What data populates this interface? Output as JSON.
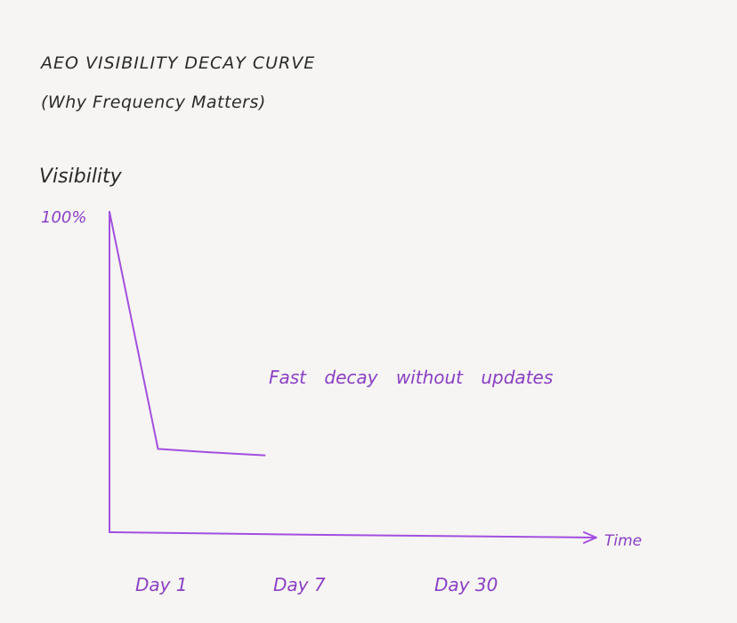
{
  "chart_data": {
    "type": "line",
    "title": "AEO VISIBILITY DECAY CURVE",
    "subtitle": "(Why Frequency Matters)",
    "ylabel": "Visibility",
    "xlabel": "Time",
    "y_tick_label": "100%",
    "x_tick_labels": [
      "Day 1",
      "Day 7",
      "Day 30"
    ],
    "annotation": "Fast decay without updates",
    "series": [
      {
        "x": [
          0,
          1,
          2,
          3.2
        ],
        "y": [
          100,
          26,
          25,
          24
        ]
      }
    ],
    "xlim": [
      0,
      10
    ],
    "ylim": [
      0,
      100
    ],
    "grid": false,
    "line_color": "#a24fe0"
  }
}
